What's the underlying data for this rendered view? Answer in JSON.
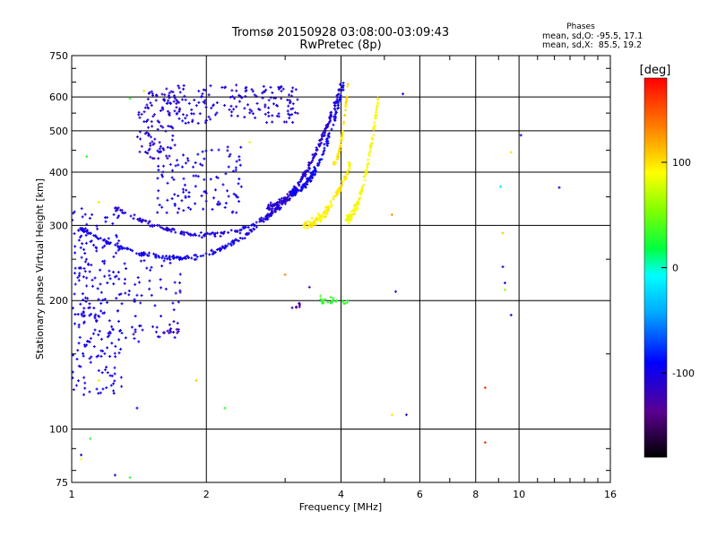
{
  "chart_data": {
    "type": "scatter",
    "title": "Tromsø 20150928 03:08:00-03:09:43",
    "subtitle": "RwPretec (8p)",
    "xlabel": "Frequency [MHz]",
    "ylabel": "Stationary phase Virtual Height [km]",
    "x_scale": "log",
    "y_scale": "log",
    "xlim": [
      1,
      16
    ],
    "ylim": [
      75,
      750
    ],
    "x_ticks": [
      1,
      2,
      4,
      6,
      8,
      10,
      16
    ],
    "y_ticks": [
      75,
      100,
      200,
      300,
      400,
      500,
      600,
      750
    ],
    "grid": true,
    "stats": {
      "heading": "Phases",
      "line_o": "mean, sd,O: -95.5, 17.1",
      "line_x": "mean, sd,X:  85.5, 19.2"
    },
    "colorbar": {
      "label": "[deg]",
      "range": [
        -180,
        180
      ],
      "ticks": [
        -100,
        0,
        100
      ]
    },
    "traces": [
      {
        "kind": "arc",
        "f0": 1.05,
        "f1": 3.1,
        "h_min": 252,
        "f_min": 1.75,
        "h_left": 295,
        "h_right": 360,
        "jitter": 0.018,
        "n": 190,
        "phase": -100
      },
      {
        "kind": "arc",
        "f0": 1.25,
        "f1": 3.5,
        "h_min": 285,
        "f_min": 2.05,
        "h_left": 330,
        "h_right": 400,
        "jitter": 0.02,
        "n": 170,
        "phase": -105
      },
      {
        "kind": "rise",
        "f0": 2.7,
        "f1": 4.0,
        "h0": 330,
        "h1": 640,
        "jitter": 0.03,
        "n": 180,
        "phase": -110
      },
      {
        "kind": "rise",
        "f0": 3.1,
        "f1": 4.05,
        "h0": 360,
        "h1": 640,
        "jitter": 0.035,
        "n": 120,
        "phase": -95
      },
      {
        "kind": "band",
        "f0": 1.6,
        "f1": 3.2,
        "h0": 520,
        "h1": 640,
        "n": 170,
        "phase": -105
      },
      {
        "kind": "band",
        "f0": 1.4,
        "f1": 1.75,
        "h0": 430,
        "h1": 620,
        "n": 90,
        "phase": -110
      },
      {
        "kind": "band",
        "f0": 1.55,
        "f1": 2.4,
        "h0": 320,
        "h1": 460,
        "n": 120,
        "phase": -100
      },
      {
        "kind": "band",
        "f0": 1.0,
        "f1": 1.3,
        "h0": 120,
        "h1": 330,
        "n": 230,
        "phase": -100
      },
      {
        "kind": "band",
        "f0": 1.3,
        "f1": 1.75,
        "h0": 160,
        "h1": 250,
        "n": 60,
        "phase": -105
      },
      {
        "kind": "rise",
        "f0": 3.3,
        "f1": 4.2,
        "h0": 300,
        "h1": 420,
        "jitter": 0.035,
        "n": 120,
        "phase": 95
      },
      {
        "kind": "rise",
        "f0": 3.85,
        "f1": 4.15,
        "h0": 420,
        "h1": 650,
        "jitter": 0.02,
        "n": 60,
        "phase": 100
      },
      {
        "kind": "rise",
        "f0": 4.1,
        "f1": 4.85,
        "h0": 310,
        "h1": 600,
        "jitter": 0.04,
        "n": 110,
        "phase": 90
      },
      {
        "kind": "band",
        "f0": 3.6,
        "f1": 4.2,
        "h0": 196,
        "h1": 204,
        "n": 22,
        "phase": 30
      },
      {
        "kind": "band",
        "f0": 3.1,
        "f1": 3.3,
        "h0": 192,
        "h1": 198,
        "n": 8,
        "phase": -130
      },
      {
        "kind": "band",
        "f0": 1.6,
        "f1": 1.75,
        "h0": 168,
        "h1": 172,
        "n": 12,
        "phase": -115
      }
    ],
    "scatter_points": [
      {
        "f": 8.4,
        "h": 125,
        "phase": 160
      },
      {
        "f": 8.4,
        "h": 93,
        "phase": 160
      },
      {
        "f": 10.1,
        "h": 488,
        "phase": -110
      },
      {
        "f": 12.3,
        "h": 368,
        "phase": -100
      },
      {
        "f": 9.2,
        "h": 240,
        "phase": -120
      },
      {
        "f": 9.3,
        "h": 220,
        "phase": -110
      },
      {
        "f": 9.6,
        "h": 185,
        "phase": -115
      },
      {
        "f": 9.6,
        "h": 445,
        "phase": 100
      },
      {
        "f": 9.1,
        "h": 370,
        "phase": -20
      },
      {
        "f": 9.3,
        "h": 212,
        "phase": 60
      },
      {
        "f": 9.2,
        "h": 288,
        "phase": 110
      },
      {
        "f": 5.2,
        "h": 108,
        "phase": 100
      },
      {
        "f": 5.6,
        "h": 108,
        "phase": -110
      },
      {
        "f": 5.3,
        "h": 210,
        "phase": -110
      },
      {
        "f": 5.2,
        "h": 318,
        "phase": 130
      },
      {
        "f": 5.5,
        "h": 610,
        "phase": -110
      },
      {
        "f": 3.0,
        "h": 230,
        "phase": 130
      },
      {
        "f": 3.6,
        "h": 205,
        "phase": 40
      },
      {
        "f": 3.4,
        "h": 215,
        "phase": -130
      },
      {
        "f": 1.1,
        "h": 95,
        "phase": 30
      },
      {
        "f": 1.05,
        "h": 87,
        "phase": -110
      },
      {
        "f": 1.05,
        "h": 85,
        "phase": 90
      },
      {
        "f": 1.25,
        "h": 78,
        "phase": -110
      },
      {
        "f": 1.35,
        "h": 77,
        "phase": 30
      },
      {
        "f": 1.15,
        "h": 130,
        "phase": 100
      },
      {
        "f": 1.4,
        "h": 112,
        "phase": -100
      },
      {
        "f": 1.9,
        "h": 130,
        "phase": 110
      },
      {
        "f": 2.2,
        "h": 112,
        "phase": 30
      },
      {
        "f": 2.5,
        "h": 470,
        "phase": 80
      },
      {
        "f": 1.45,
        "h": 620,
        "phase": 100
      },
      {
        "f": 1.35,
        "h": 595,
        "phase": 30
      },
      {
        "f": 1.08,
        "h": 435,
        "phase": 30
      },
      {
        "f": 1.15,
        "h": 340,
        "phase": 100
      }
    ]
  }
}
